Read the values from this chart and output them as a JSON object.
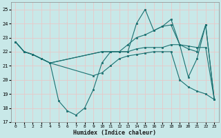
{
  "xlabel": "Humidex (Indice chaleur)",
  "bg_color": "#c8e8e8",
  "line_color": "#1a7070",
  "grid_color": "#b0d8d8",
  "xlim": [
    -0.5,
    23.5
  ],
  "ylim": [
    17,
    25.5
  ],
  "yticks": [
    17,
    18,
    19,
    20,
    21,
    22,
    23,
    24,
    25
  ],
  "xticks": [
    0,
    1,
    2,
    3,
    4,
    5,
    6,
    7,
    8,
    9,
    10,
    11,
    12,
    13,
    14,
    15,
    16,
    17,
    18,
    19,
    20,
    21,
    22,
    23
  ],
  "line1_x": [
    0,
    1,
    2,
    3,
    4,
    5,
    6,
    7,
    8,
    9,
    10,
    11,
    12,
    13,
    14,
    15,
    16,
    17,
    18,
    19,
    20,
    21,
    22,
    23
  ],
  "line1_y": [
    22.7,
    22.0,
    21.8,
    21.5,
    21.2,
    18.5,
    17.8,
    17.5,
    18.0,
    19.3,
    21.2,
    22.0,
    22.0,
    22.0,
    24.0,
    25.0,
    23.5,
    23.8,
    24.3,
    22.5,
    20.2,
    21.5,
    23.9,
    18.6
  ],
  "line2_x": [
    0,
    1,
    2,
    3,
    4,
    10,
    11,
    12,
    13,
    14,
    15,
    16,
    17,
    18,
    19,
    20,
    21,
    22,
    23
  ],
  "line2_y": [
    22.7,
    22.0,
    21.8,
    21.5,
    21.2,
    22.0,
    22.0,
    22.0,
    22.0,
    22.2,
    22.3,
    22.3,
    22.3,
    22.5,
    22.5,
    22.4,
    22.3,
    22.3,
    18.6
  ],
  "line3_x": [
    0,
    1,
    2,
    3,
    4,
    10,
    11,
    12,
    13,
    14,
    15,
    16,
    17,
    18,
    19,
    20,
    21,
    22,
    23
  ],
  "line3_y": [
    22.7,
    22.0,
    21.8,
    21.5,
    21.2,
    22.0,
    22.0,
    22.0,
    22.5,
    23.0,
    23.2,
    23.5,
    23.8,
    23.9,
    22.5,
    22.2,
    22.0,
    23.9,
    18.6
  ],
  "line4_x": [
    0,
    1,
    2,
    3,
    4,
    9,
    10,
    11,
    12,
    13,
    14,
    15,
    16,
    17,
    18,
    19,
    20,
    21,
    22,
    23
  ],
  "line4_y": [
    22.7,
    22.0,
    21.8,
    21.5,
    21.2,
    20.3,
    20.5,
    21.0,
    21.5,
    21.7,
    21.8,
    21.9,
    22.0,
    22.0,
    22.0,
    20.0,
    19.5,
    19.2,
    19.0,
    18.6
  ]
}
